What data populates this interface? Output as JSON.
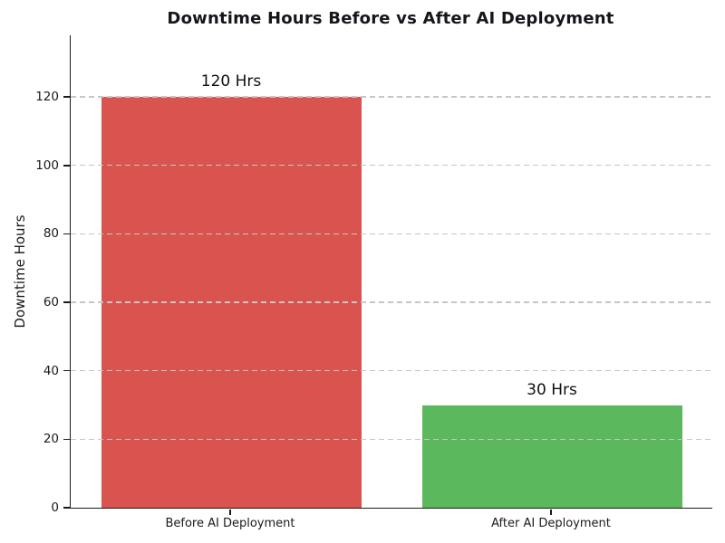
{
  "chart_data": {
    "type": "bar",
    "title": "Downtime Hours Before vs After AI Deployment",
    "categories": [
      "Before AI Deployment",
      "After AI Deployment"
    ],
    "values": [
      120,
      30
    ],
    "bar_value_labels": [
      "120 Hrs",
      "30 Hrs"
    ],
    "bar_colors": [
      "#d9534f",
      "#5cb85c"
    ],
    "xlabel": "",
    "ylabel": "Downtime Hours",
    "ylim": [
      0,
      138
    ],
    "yticks": [
      0,
      20,
      40,
      60,
      80,
      100,
      120
    ],
    "grid": "horizontal dashed gridlines, drawn above bars",
    "legend_position": "none"
  },
  "colors": {
    "background": "#ffffff",
    "title_text": "#15151b",
    "axis_text": "#1a1a1a",
    "spine": "#1a1a1a",
    "gridline": "#c6c6c6",
    "bar_before": "#d9534f",
    "bar_after": "#5cb85c"
  }
}
